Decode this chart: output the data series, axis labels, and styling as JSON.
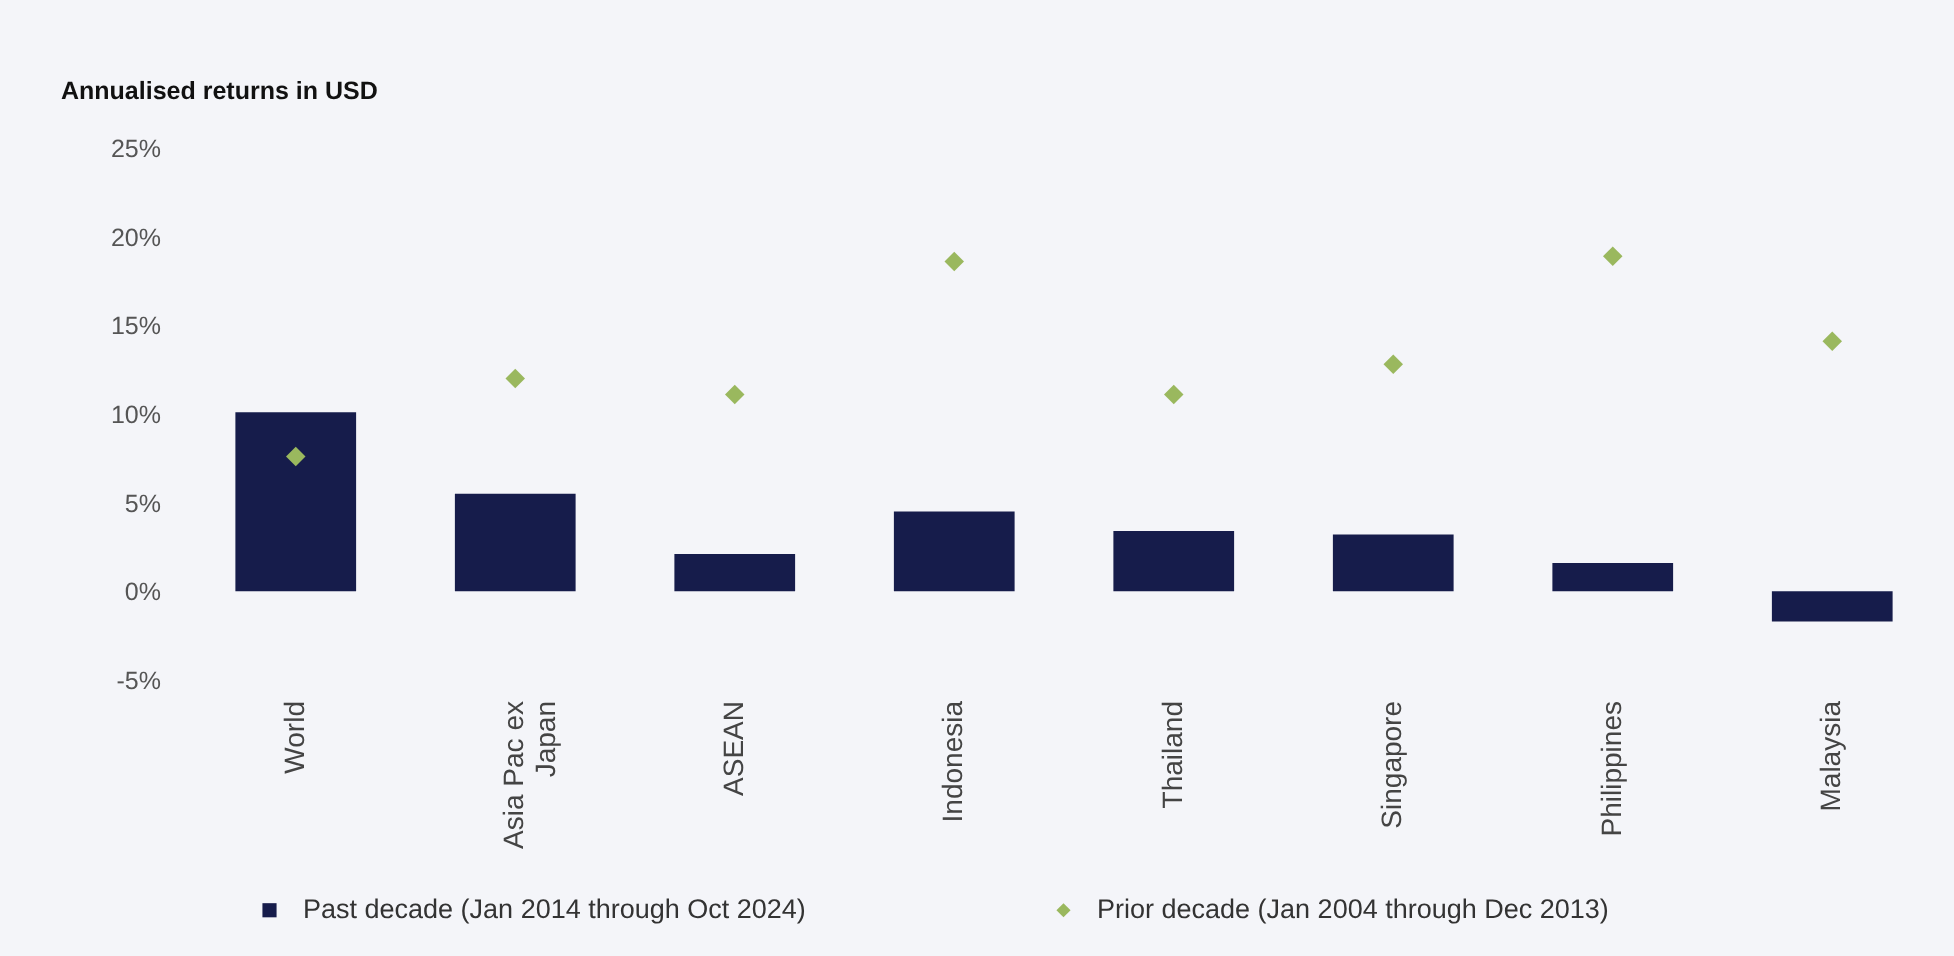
{
  "chart_data": {
    "type": "bar",
    "ylabel": "Annualised returns in USD",
    "categories": [
      "World",
      "Asia Pac ex Japan",
      "ASEAN",
      "Indonesia",
      "Thailand",
      "Singapore",
      "Philippines",
      "Malaysia"
    ],
    "series": [
      {
        "name": "Past decade (Jan 2014 through Oct 2024)",
        "color": "#161c4b",
        "values": [
          10.1,
          5.5,
          2.1,
          4.5,
          3.4,
          3.2,
          1.6,
          -1.7
        ]
      },
      {
        "name": "Prior decade (Jan 2004 through Dec 2013)",
        "type": "scatter",
        "marker": "diamond",
        "color": "#9ab85e",
        "values": [
          7.6,
          12.0,
          11.1,
          18.6,
          11.1,
          12.8,
          18.9,
          14.1
        ]
      }
    ],
    "ylim": [
      -5,
      25
    ],
    "yticks": [
      {
        "value": -5,
        "label": "-5%"
      },
      {
        "value": 0,
        "label": "0%"
      },
      {
        "value": 5,
        "label": "5%"
      },
      {
        "value": 10,
        "label": "10%"
      },
      {
        "value": 15,
        "label": "15%"
      },
      {
        "value": 20,
        "label": "20%"
      },
      {
        "value": 25,
        "label": "25%"
      }
    ],
    "grid": false,
    "legend": "bottom"
  }
}
